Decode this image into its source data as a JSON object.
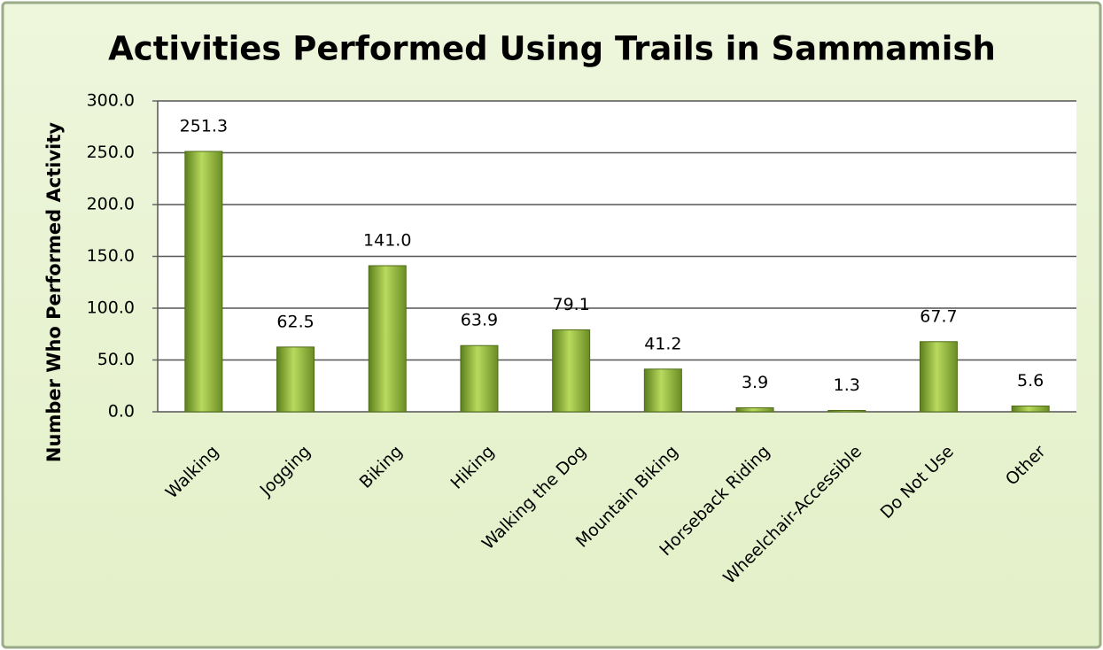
{
  "chart_data": {
    "type": "bar",
    "title": "Activities Performed Using Trails in Sammamish",
    "y_label": "Number Who Performed Activity",
    "categories": [
      "Walking",
      "Jogging",
      "Biking",
      "Hiking",
      "Walking the Dog",
      "Mountain Biking",
      "Horseback Riding",
      "Wheelchair-Accessible",
      "Do Not Use",
      "Other"
    ],
    "values": [
      251.3,
      62.5,
      141.0,
      63.9,
      79.1,
      41.2,
      3.9,
      1.3,
      67.7,
      5.6
    ],
    "value_labels": [
      "251.3",
      "62.5",
      "141.0",
      "63.9",
      "79.1",
      "41.2",
      "3.9",
      "1.3",
      "67.7",
      "5.6"
    ],
    "color": "#8db33a",
    "ylim": [
      0,
      300
    ],
    "yticks": [
      {
        "value": 0,
        "label": "0.0"
      },
      {
        "value": 50,
        "label": "50.0"
      },
      {
        "value": 100,
        "label": "100.0"
      },
      {
        "value": 150,
        "label": "150.0"
      },
      {
        "value": 200,
        "label": "200.0"
      },
      {
        "value": 250,
        "label": "250.0"
      },
      {
        "value": 300,
        "label": "300.0"
      }
    ],
    "grid": true
  }
}
